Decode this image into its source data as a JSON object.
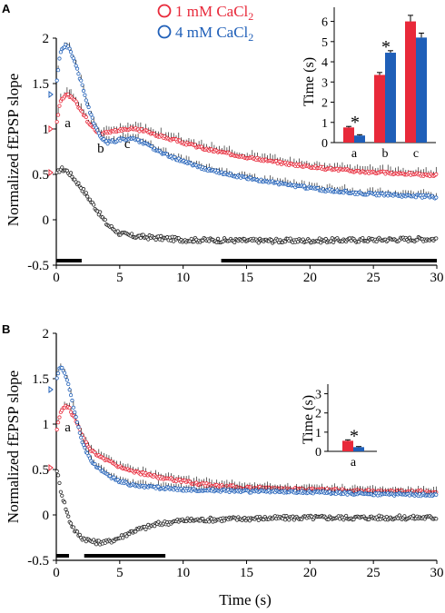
{
  "legend": {
    "items": [
      {
        "label_main": "1 mM CaCl",
        "label_sub": "2",
        "color": "#e8293a"
      },
      {
        "label_main": "4 mM CaCl",
        "label_sub": "2",
        "color": "#1f5fb8"
      }
    ]
  },
  "colors": {
    "red": "#e8293a",
    "blue": "#1f5fb8",
    "black": "#222222"
  },
  "chart_data": [
    {
      "panel": "A",
      "type": "scatter",
      "xlabel": "",
      "ylabel": "Normalized fEPSP slope",
      "xlim": [
        0,
        30
      ],
      "ylim": [
        -0.5,
        2
      ],
      "xticks": [
        "0",
        "5",
        "10",
        "15",
        "20",
        "25",
        "30"
      ],
      "yticks": [
        "-0.5",
        "0",
        "0.5",
        "1",
        "1.5",
        "2"
      ],
      "markers": {
        "blue_start": 1.38,
        "red_start": 1.0,
        "red_lower": 0.52
      },
      "annotations": [
        {
          "text": "a",
          "x": 0.9,
          "y": 1.02
        },
        {
          "text": "b",
          "x": 3.5,
          "y": 0.74
        },
        {
          "text": "c",
          "x": 5.6,
          "y": 0.79
        }
      ],
      "bars": [
        {
          "x0": 0,
          "x1": 2
        },
        {
          "x0": 13,
          "x1": 30
        }
      ],
      "series": [
        {
          "name": "1 mM CaCl2",
          "color": "red",
          "err": 0.06,
          "points": [
            [
              0.05,
              1.08
            ],
            [
              0.3,
              1.3
            ],
            [
              0.7,
              1.38
            ],
            [
              1.0,
              1.37
            ],
            [
              1.5,
              1.3
            ],
            [
              2.0,
              1.2
            ],
            [
              2.5,
              1.08
            ],
            [
              3.0,
              1.0
            ],
            [
              3.5,
              0.95
            ],
            [
              4.0,
              0.96
            ],
            [
              5.0,
              0.99
            ],
            [
              6.0,
              1.0
            ],
            [
              7.0,
              0.98
            ],
            [
              8.0,
              0.93
            ],
            [
              10.0,
              0.85
            ],
            [
              12.0,
              0.77
            ],
            [
              15.0,
              0.69
            ],
            [
              18.0,
              0.62
            ],
            [
              21.0,
              0.57
            ],
            [
              24.0,
              0.53
            ],
            [
              27.0,
              0.51
            ],
            [
              30.0,
              0.49
            ]
          ]
        },
        {
          "name": "4 mM CaCl2",
          "color": "blue",
          "err": 0.05,
          "points": [
            [
              0.05,
              1.52
            ],
            [
              0.3,
              1.85
            ],
            [
              0.7,
              1.92
            ],
            [
              1.0,
              1.9
            ],
            [
              1.5,
              1.72
            ],
            [
              2.0,
              1.5
            ],
            [
              2.5,
              1.25
            ],
            [
              3.0,
              1.05
            ],
            [
              3.5,
              0.9
            ],
            [
              4.0,
              0.85
            ],
            [
              5.0,
              0.88
            ],
            [
              6.0,
              0.89
            ],
            [
              7.0,
              0.84
            ],
            [
              8.0,
              0.76
            ],
            [
              10.0,
              0.64
            ],
            [
              12.0,
              0.55
            ],
            [
              15.0,
              0.46
            ],
            [
              18.0,
              0.39
            ],
            [
              21.0,
              0.33
            ],
            [
              24.0,
              0.29
            ],
            [
              27.0,
              0.27
            ],
            [
              30.0,
              0.25
            ]
          ]
        },
        {
          "name": "",
          "color": "black",
          "err": 0,
          "points": [
            [
              0.05,
              0.5
            ],
            [
              0.3,
              0.56
            ],
            [
              0.7,
              0.55
            ],
            [
              1.0,
              0.52
            ],
            [
              2.0,
              0.35
            ],
            [
              3.0,
              0.15
            ],
            [
              4.0,
              -0.05
            ],
            [
              5.0,
              -0.15
            ],
            [
              6.0,
              -0.18
            ],
            [
              8.0,
              -0.2
            ],
            [
              10.0,
              -0.22
            ],
            [
              15.0,
              -0.23
            ],
            [
              20.0,
              -0.23
            ],
            [
              25.0,
              -0.22
            ],
            [
              30.0,
              -0.21
            ]
          ]
        }
      ],
      "inset": {
        "type": "bar",
        "ylabel": "Time (s)",
        "ylim": [
          0,
          6.7
        ],
        "yticks": [
          "0",
          "1",
          "2",
          "3",
          "4",
          "5",
          "6"
        ],
        "categories": [
          "a",
          "b",
          "c"
        ],
        "series": [
          {
            "name": "1 mM CaCl2",
            "color": "red",
            "values": [
              0.75,
              3.35,
              6.0
            ],
            "err": [
              0.05,
              0.12,
              0.3
            ]
          },
          {
            "name": "4 mM CaCl2",
            "color": "blue",
            "values": [
              0.35,
              4.45,
              5.2
            ],
            "err": [
              0.04,
              0.1,
              0.22
            ]
          }
        ],
        "significance": [
          "*",
          "*",
          ""
        ]
      }
    },
    {
      "panel": "B",
      "type": "scatter",
      "xlabel": "Time (s)",
      "ylabel": "Normalized fEPSP slope",
      "xlim": [
        0,
        30
      ],
      "ylim": [
        -0.5,
        2
      ],
      "xticks": [
        "0",
        "5",
        "10",
        "15",
        "20",
        "25",
        "30"
      ],
      "yticks": [
        "-0.5",
        "0",
        "0.5",
        "1",
        "1.5",
        "2"
      ],
      "markers": {
        "blue_start": 1.38,
        "red_start": 0.52
      },
      "annotations": [
        {
          "text": "a",
          "x": 0.9,
          "y": 0.92
        }
      ],
      "bars": [
        {
          "x0": 0,
          "x1": 1
        },
        {
          "x0": 2.2,
          "x1": 8.6
        }
      ],
      "series": [
        {
          "name": "1 mM CaCl2",
          "color": "red",
          "err": 0.05,
          "points": [
            [
              0.05,
              0.95
            ],
            [
              0.3,
              1.12
            ],
            [
              0.7,
              1.2
            ],
            [
              1.0,
              1.18
            ],
            [
              1.5,
              1.05
            ],
            [
              2.0,
              0.88
            ],
            [
              2.5,
              0.75
            ],
            [
              3.0,
              0.68
            ],
            [
              4.0,
              0.6
            ],
            [
              5.0,
              0.53
            ],
            [
              6.0,
              0.48
            ],
            [
              8.0,
              0.42
            ],
            [
              10.0,
              0.37
            ],
            [
              12.0,
              0.33
            ],
            [
              15.0,
              0.3
            ],
            [
              20.0,
              0.28
            ],
            [
              25.0,
              0.26
            ],
            [
              30.0,
              0.25
            ]
          ]
        },
        {
          "name": "4 mM CaCl2",
          "color": "blue",
          "err": 0.05,
          "points": [
            [
              0.05,
              1.5
            ],
            [
              0.3,
              1.65
            ],
            [
              0.7,
              1.55
            ],
            [
              1.0,
              1.4
            ],
            [
              1.5,
              1.1
            ],
            [
              2.0,
              0.83
            ],
            [
              2.5,
              0.65
            ],
            [
              3.0,
              0.55
            ],
            [
              4.0,
              0.44
            ],
            [
              5.0,
              0.37
            ],
            [
              6.0,
              0.33
            ],
            [
              8.0,
              0.3
            ],
            [
              10.0,
              0.28
            ],
            [
              15.0,
              0.26
            ],
            [
              20.0,
              0.25
            ],
            [
              25.0,
              0.23
            ],
            [
              30.0,
              0.22
            ]
          ]
        },
        {
          "name": "",
          "color": "black",
          "err": 0,
          "points": [
            [
              0.05,
              0.5
            ],
            [
              0.3,
              0.3
            ],
            [
              0.7,
              0.1
            ],
            [
              1.0,
              -0.05
            ],
            [
              1.5,
              -0.18
            ],
            [
              2.0,
              -0.25
            ],
            [
              3.0,
              -0.3
            ],
            [
              4.0,
              -0.3
            ],
            [
              5.0,
              -0.25
            ],
            [
              6.0,
              -0.18
            ],
            [
              8.0,
              -0.1
            ],
            [
              10.0,
              -0.06
            ],
            [
              15.0,
              -0.04
            ],
            [
              20.0,
              -0.03
            ],
            [
              25.0,
              -0.03
            ],
            [
              30.0,
              -0.03
            ]
          ]
        }
      ],
      "inset": {
        "type": "bar",
        "ylabel": "Time (s)",
        "ylim": [
          0,
          3.5
        ],
        "yticks": [
          "0",
          "1",
          "2",
          "3"
        ],
        "categories": [
          "a"
        ],
        "series": [
          {
            "name": "1 mM CaCl2",
            "color": "red",
            "values": [
              0.55
            ],
            "err": [
              0.05
            ]
          },
          {
            "name": "4 mM CaCl2",
            "color": "blue",
            "values": [
              0.22
            ],
            "err": [
              0.03
            ]
          }
        ],
        "significance": [
          "*"
        ]
      }
    }
  ]
}
